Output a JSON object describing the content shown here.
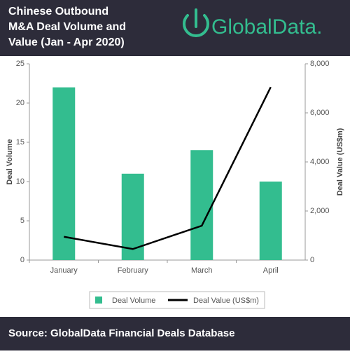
{
  "header": {
    "title": [
      "Chinese Outbound",
      "M&A Deal Volume and",
      "Value (Jan - Apr 2020)"
    ],
    "logo": "GlobalData."
  },
  "chart_data": {
    "type": "bar-line",
    "categories": [
      "January",
      "February",
      "March",
      "April"
    ],
    "series": [
      {
        "name": "Deal Volume",
        "color": "#33bd8f",
        "type": "bar",
        "values": [
          22,
          11,
          14,
          10
        ]
      },
      {
        "name": "Deal Value (US$m)",
        "color": "#000000",
        "type": "line",
        "axis": "y2",
        "values": [
          950,
          450,
          1400,
          7050
        ]
      }
    ],
    "y_label": "Deal Volume",
    "y2_label": "Deal Value (US$m)",
    "ylim": [
      0,
      25
    ],
    "yticks": [
      0,
      5,
      10,
      15,
      20,
      25
    ],
    "y2lim": [
      0,
      8000
    ],
    "y2ticks": [
      0,
      {
        "value": 2000,
        "label": "2,000"
      },
      {
        "value": 4000,
        "label": "4,000"
      },
      {
        "value": 6000,
        "label": "6,000"
      },
      {
        "value": 8000,
        "label": "8,000"
      }
    ]
  },
  "footer": {
    "source": "Source: GlobalData Financial Deals Database"
  }
}
